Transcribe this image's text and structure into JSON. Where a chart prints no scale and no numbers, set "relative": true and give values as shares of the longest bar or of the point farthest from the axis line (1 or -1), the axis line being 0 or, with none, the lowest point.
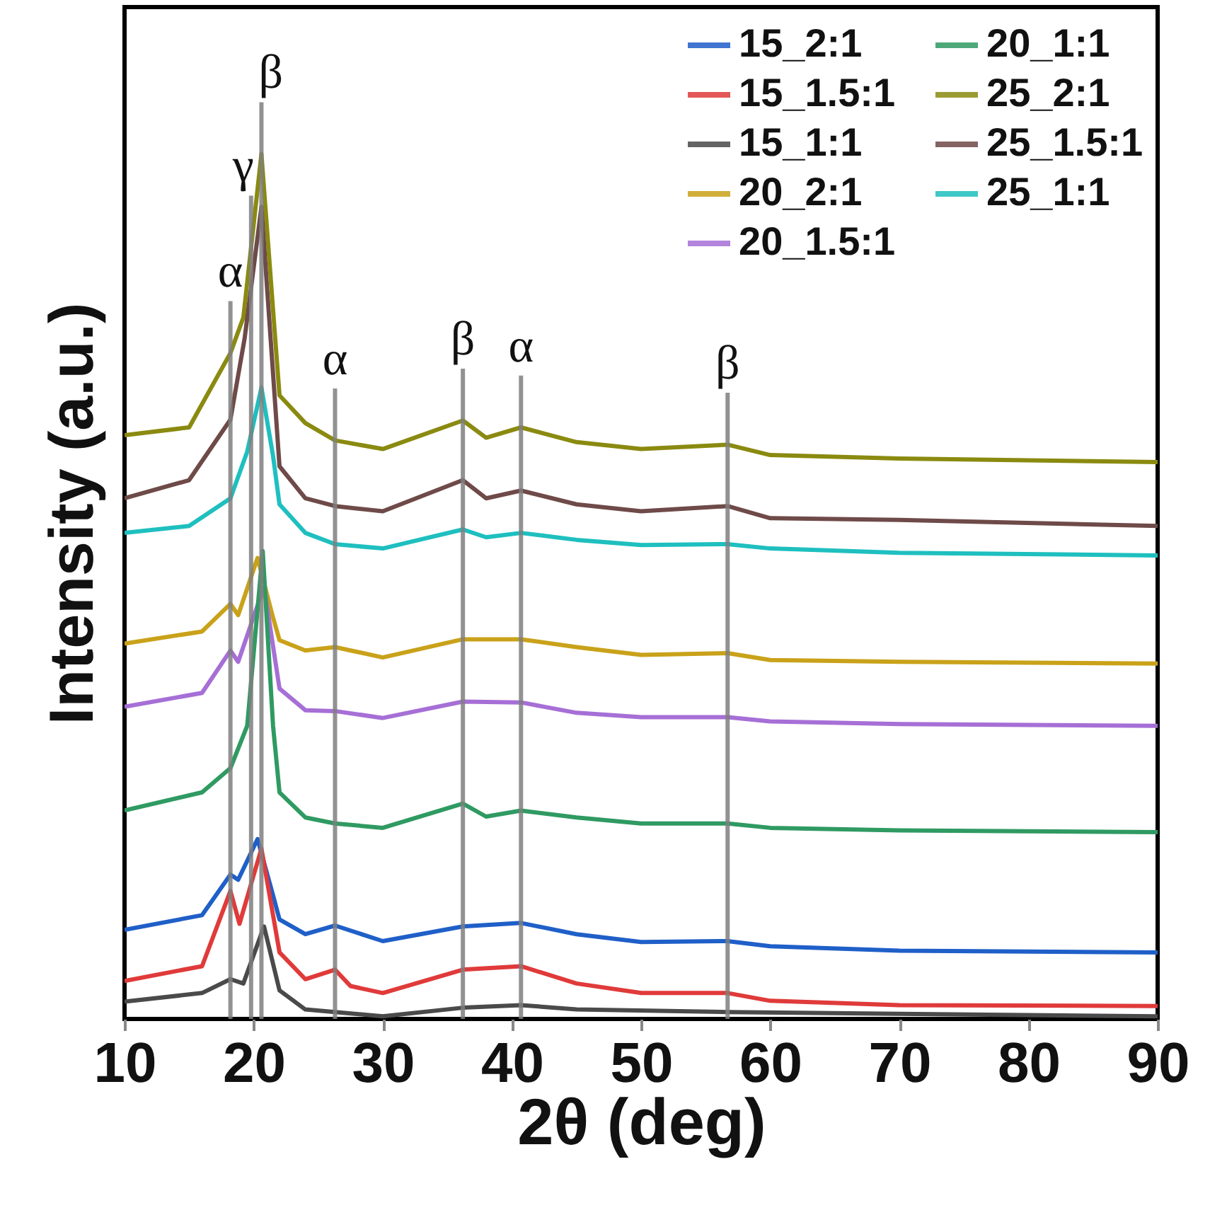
{
  "chart_data": {
    "type": "line",
    "relative": true,
    "xlabel": "2θ (deg)",
    "ylabel": "Intensity (a.u.)",
    "xlim": [
      10,
      90
    ],
    "xticks": [
      10,
      20,
      30,
      40,
      50,
      60,
      70,
      80,
      90
    ],
    "grid": false,
    "legend": "top right",
    "series": [
      {
        "name": "15_2:1",
        "color": "#1f5fc8",
        "x": [
          10,
          16,
          18.2,
          18.8,
          20.3,
          21.5,
          22,
          24,
          26.3,
          30,
          36.2,
          40.7,
          45,
          50,
          56.7,
          60,
          70,
          90
        ],
        "values": [
          0.103,
          0.12,
          0.167,
          0.161,
          0.208,
          0.143,
          0.115,
          0.098,
          0.108,
          0.09,
          0.107,
          0.111,
          0.098,
          0.089,
          0.09,
          0.084,
          0.079,
          0.077
        ]
      },
      {
        "name": "15_1.5:1",
        "color": "#e03a3a",
        "x": [
          10,
          16,
          18.2,
          18.9,
          20.6,
          21.5,
          22,
          24,
          26.3,
          27.5,
          30,
          36.2,
          40.7,
          45,
          50,
          56.7,
          60,
          70,
          90
        ],
        "values": [
          0.044,
          0.061,
          0.148,
          0.11,
          0.197,
          0.12,
          0.077,
          0.046,
          0.057,
          0.038,
          0.03,
          0.057,
          0.061,
          0.041,
          0.03,
          0.03,
          0.021,
          0.016,
          0.015
        ]
      },
      {
        "name": "15_1:1",
        "color": "#4a4a4a",
        "x": [
          10,
          16,
          18.2,
          19.2,
          20.8,
          22,
          24,
          26.3,
          30,
          36.2,
          40.7,
          45,
          56.7,
          90
        ],
        "values": [
          0.02,
          0.03,
          0.046,
          0.041,
          0.107,
          0.033,
          0.011,
          0.008,
          0.003,
          0.013,
          0.016,
          0.011,
          0.008,
          0.003
        ]
      },
      {
        "name": "20_2:1",
        "color": "#c9a21a",
        "x": [
          10,
          16,
          18.2,
          18.8,
          20.3,
          21.5,
          22,
          24,
          26.3,
          30,
          36.2,
          40.7,
          45,
          50,
          56.7,
          60,
          70,
          90
        ],
        "values": [
          0.434,
          0.448,
          0.48,
          0.467,
          0.533,
          0.464,
          0.438,
          0.426,
          0.43,
          0.418,
          0.439,
          0.439,
          0.43,
          0.421,
          0.423,
          0.415,
          0.413,
          0.411
        ]
      },
      {
        "name": "20_1.5:1",
        "color": "#a66fd6",
        "x": [
          10,
          16,
          18.2,
          18.8,
          20.8,
          22,
          24,
          26.3,
          30,
          36.2,
          40.7,
          45,
          50,
          56.7,
          60,
          70,
          90
        ],
        "values": [
          0.361,
          0.377,
          0.426,
          0.413,
          0.5,
          0.382,
          0.357,
          0.356,
          0.348,
          0.367,
          0.366,
          0.354,
          0.349,
          0.349,
          0.344,
          0.341,
          0.339
        ]
      },
      {
        "name": "20_1:1",
        "color": "#2f9a62",
        "x": [
          10,
          16,
          18.2,
          19.5,
          20.7,
          21.5,
          22,
          24,
          26.3,
          30,
          36.2,
          38,
          40.7,
          45,
          50,
          56.7,
          60,
          70,
          90
        ],
        "values": [
          0.241,
          0.262,
          0.29,
          0.339,
          0.541,
          0.339,
          0.262,
          0.233,
          0.226,
          0.221,
          0.249,
          0.234,
          0.241,
          0.233,
          0.226,
          0.226,
          0.221,
          0.218,
          0.216
        ]
      },
      {
        "name": "25_2:1",
        "color": "#8a8a10",
        "x": [
          10,
          15,
          18.2,
          19.2,
          20.6,
          21.5,
          22,
          24,
          26.3,
          30,
          36.2,
          38,
          40.7,
          45,
          50,
          56.7,
          60,
          70,
          90
        ],
        "values": [
          0.675,
          0.684,
          0.77,
          0.811,
          1,
          0.82,
          0.721,
          0.689,
          0.669,
          0.659,
          0.692,
          0.672,
          0.684,
          0.667,
          0.659,
          0.664,
          0.652,
          0.648,
          0.644
        ]
      },
      {
        "name": "25_1.5:1",
        "color": "#6e4a48",
        "x": [
          10,
          15,
          18.2,
          19.3,
          20.6,
          22,
          24,
          26.3,
          30,
          36.2,
          38,
          40.7,
          45,
          50,
          56.7,
          60,
          70,
          90
        ],
        "values": [
          0.602,
          0.623,
          0.693,
          0.787,
          0.939,
          0.639,
          0.602,
          0.593,
          0.587,
          0.623,
          0.602,
          0.611,
          0.595,
          0.587,
          0.593,
          0.579,
          0.577,
          0.57
        ]
      },
      {
        "name": "25_1:1",
        "color": "#1fbfbf",
        "x": [
          10,
          15,
          18.2,
          19.5,
          20.6,
          21.5,
          22,
          24,
          26.3,
          30,
          36.2,
          38,
          40.7,
          45,
          50,
          56.7,
          60,
          70,
          90
        ],
        "values": [
          0.562,
          0.57,
          0.602,
          0.656,
          0.73,
          0.651,
          0.595,
          0.562,
          0.549,
          0.544,
          0.566,
          0.557,
          0.562,
          0.554,
          0.548,
          0.549,
          0.544,
          0.539,
          0.536
        ]
      }
    ],
    "ref_lines": [
      {
        "axis": "x",
        "value": 18.2,
        "label": "α"
      },
      {
        "axis": "x",
        "value": 19.8,
        "label": "γ"
      },
      {
        "axis": "x",
        "value": 20.6,
        "label": "β"
      },
      {
        "axis": "x",
        "value": 26.3,
        "label": "α"
      },
      {
        "axis": "x",
        "value": 36.2,
        "label": "β"
      },
      {
        "axis": "x",
        "value": 40.7,
        "label": "α"
      },
      {
        "axis": "x",
        "value": 56.7,
        "label": "β"
      }
    ]
  }
}
